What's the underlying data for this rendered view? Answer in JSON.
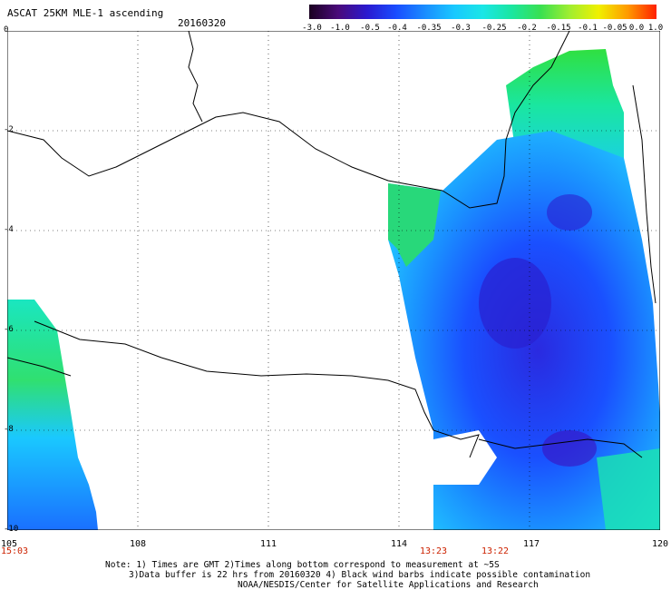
{
  "header": {
    "title": "ASCAT 25KM MLE-1 ascending",
    "date": "20160320"
  },
  "colorbar": {
    "labels": [
      "-3.0",
      "-1.0",
      "-0.5",
      "-0.4",
      "-0.35",
      "-0.3",
      "-0.25",
      "-0.2",
      "-0.15",
      "-0.1",
      "-0.05",
      "0.0",
      "1.0"
    ],
    "colors": [
      "#1a0020",
      "#4a0a7a",
      "#2a1ad0",
      "#1a4cff",
      "#1a8cff",
      "#19c8ff",
      "#1ae6e6",
      "#1ae6a0",
      "#3ae050",
      "#a0ee30",
      "#f0f000",
      "#ff9a00",
      "#ff2000"
    ]
  },
  "axes": {
    "x_ticks": [
      "105",
      "108",
      "111",
      "114",
      "117",
      "120"
    ],
    "y_ticks": [
      "0",
      "-2",
      "-4",
      "-6",
      "-8",
      "-10"
    ]
  },
  "pass_times": [
    "15:03",
    "13:23",
    "13:22"
  ],
  "notes": [
    "Note: 1) Times are GMT 2)Times along bottom correspond to measurement at ~5S",
    "3)Data buffer is 22 hrs from 20160320 4) Black wind barbs indicate possible contamination",
    "NOAA/NESDIS/Center for Satellite Applications and Research"
  ]
}
